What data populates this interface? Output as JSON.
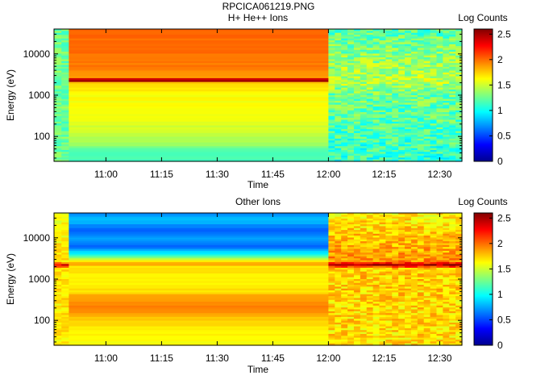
{
  "figure_title": "RPCICA061219.PNG",
  "chart_data": [
    {
      "type": "heatmap",
      "title": "H+ He++ Ions",
      "xlabel": "Time",
      "ylabel": "Energy (eV)",
      "x_ticks": [
        "11:00",
        "11:15",
        "11:30",
        "11:45",
        "12:00",
        "12:15",
        "12:30"
      ],
      "x_range": [
        "10:46",
        "12:36"
      ],
      "y_scale": "log",
      "y_range": [
        25,
        40000
      ],
      "y_ticks": [
        {
          "value": 100,
          "label": "100"
        },
        {
          "value": 1000,
          "label": "1000"
        },
        {
          "value": 10000,
          "label": "10000"
        }
      ],
      "colorbar": {
        "label": "Log Counts",
        "range": [
          0,
          2.6
        ],
        "ticks": [
          {
            "value": 0,
            "label": "0"
          },
          {
            "value": 0.5,
            "label": "0.5"
          },
          {
            "value": 1,
            "label": "1"
          },
          {
            "value": 1.5,
            "label": "1.5"
          },
          {
            "value": 2,
            "label": "2"
          },
          {
            "value": 2.5,
            "label": "2.5"
          }
        ]
      },
      "segments": [
        {
          "start": "10:46",
          "end": "10:50",
          "pattern": "noise",
          "base": 1.25,
          "jitter": 0.15
        },
        {
          "start": "10:50",
          "end": "12:00",
          "pattern": "profile",
          "profile": [
            [
              25,
              1.15
            ],
            [
              45,
              1.15
            ],
            [
              60,
              1.35
            ],
            [
              100,
              1.45
            ],
            [
              300,
              1.6
            ],
            [
              1000,
              1.62
            ],
            [
              1600,
              1.7
            ],
            [
              2000,
              1.75
            ],
            [
              2200,
              2.55
            ],
            [
              2500,
              2.4
            ],
            [
              2700,
              1.9
            ],
            [
              4000,
              1.95
            ],
            [
              10000,
              2.0
            ],
            [
              40000,
              2.0
            ]
          ]
        },
        {
          "start": "12:00",
          "end": "12:36",
          "pattern": "noise",
          "base": 1.25,
          "jitter": 0.22,
          "profile": [
            [
              25,
              1.1
            ],
            [
              1000,
              1.25
            ],
            [
              2200,
              1.45
            ],
            [
              40000,
              1.2
            ]
          ]
        }
      ]
    },
    {
      "type": "heatmap",
      "title": "Other Ions",
      "xlabel": "Time",
      "ylabel": "Energy (eV)",
      "x_ticks": [
        "11:00",
        "11:15",
        "11:30",
        "11:45",
        "12:00",
        "12:15",
        "12:30"
      ],
      "x_range": [
        "10:46",
        "12:36"
      ],
      "y_scale": "log",
      "y_range": [
        25,
        40000
      ],
      "y_ticks": [
        {
          "value": 100,
          "label": "100"
        },
        {
          "value": 1000,
          "label": "1000"
        },
        {
          "value": 10000,
          "label": "10000"
        }
      ],
      "colorbar": {
        "label": "Log Counts",
        "range": [
          0,
          2.6
        ],
        "ticks": [
          {
            "value": 0,
            "label": "0"
          },
          {
            "value": 0.5,
            "label": "0.5"
          },
          {
            "value": 1,
            "label": "1"
          },
          {
            "value": 1.5,
            "label": "1.5"
          },
          {
            "value": 2,
            "label": "2"
          },
          {
            "value": 2.5,
            "label": "2.5"
          }
        ]
      },
      "segments": [
        {
          "start": "10:46",
          "end": "10:50",
          "pattern": "noise",
          "base": 1.65,
          "jitter": 0.12,
          "profile": [
            [
              25,
              1.65
            ],
            [
              1800,
              1.7
            ],
            [
              2200,
              2.3
            ],
            [
              2700,
              1.7
            ],
            [
              40000,
              1.6
            ]
          ]
        },
        {
          "start": "10:50",
          "end": "12:00",
          "pattern": "profile",
          "profile": [
            [
              25,
              1.6
            ],
            [
              60,
              1.65
            ],
            [
              100,
              1.75
            ],
            [
              200,
              1.95
            ],
            [
              350,
              1.9
            ],
            [
              500,
              1.7
            ],
            [
              1000,
              1.65
            ],
            [
              2000,
              1.7
            ],
            [
              2300,
              1.9
            ],
            [
              3000,
              1.5
            ],
            [
              4000,
              1.0
            ],
            [
              6000,
              0.6
            ],
            [
              10000,
              0.75
            ],
            [
              15000,
              0.55
            ],
            [
              25000,
              0.8
            ],
            [
              40000,
              0.7
            ]
          ]
        },
        {
          "start": "12:00",
          "end": "12:36",
          "pattern": "noise",
          "base": 1.7,
          "jitter": 0.18,
          "profile": [
            [
              25,
              1.7
            ],
            [
              1800,
              1.75
            ],
            [
              2200,
              2.5
            ],
            [
              2700,
              1.9
            ],
            [
              40000,
              1.65
            ]
          ]
        }
      ]
    }
  ]
}
